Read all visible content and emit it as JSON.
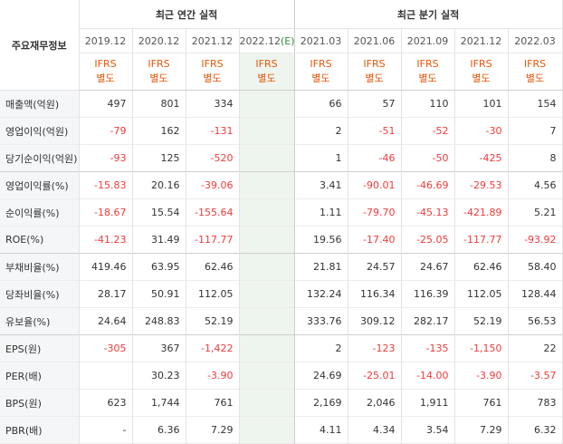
{
  "header": {
    "label_col": "주요재무정보",
    "annual_title": "최근 연간 실적",
    "quarter_title": "최근 분기 실적",
    "annual_periods": [
      "2019.12",
      "2020.12",
      "2021.12",
      "2022.12"
    ],
    "estimate_mark": "(E)",
    "quarter_periods": [
      "2021.03",
      "2021.06",
      "2021.09",
      "2021.12",
      "2022.03"
    ],
    "ifrs": "IFRS",
    "ifrs_sub": "별도"
  },
  "colors": {
    "negative": "#f03b3b",
    "ifrs": "#e6560a",
    "estimate_bg": "#eef5ee"
  },
  "rows": [
    {
      "label": "매출액(억원)",
      "annual": [
        "497",
        "801",
        "334",
        ""
      ],
      "quarter": [
        "66",
        "57",
        "110",
        "101",
        "154"
      ]
    },
    {
      "label": "영업이익(억원)",
      "annual": [
        "-79",
        "162",
        "-131",
        ""
      ],
      "quarter": [
        "2",
        "-51",
        "-52",
        "-30",
        "7"
      ]
    },
    {
      "label": "당기순이익(억원)",
      "annual": [
        "-93",
        "125",
        "-520",
        ""
      ],
      "quarter": [
        "1",
        "-46",
        "-50",
        "-425",
        "8"
      ]
    },
    {
      "label": "영업이익률(%)",
      "annual": [
        "-15.83",
        "20.16",
        "-39.06",
        ""
      ],
      "quarter": [
        "3.41",
        "-90.01",
        "-46.69",
        "-29.53",
        "4.56"
      ]
    },
    {
      "label": "순이익률(%)",
      "annual": [
        "-18.67",
        "15.54",
        "-155.64",
        ""
      ],
      "quarter": [
        "1.11",
        "-79.70",
        "-45.13",
        "-421.89",
        "5.21"
      ]
    },
    {
      "label": "ROE(%)",
      "annual": [
        "-41.23",
        "31.49",
        "-117.77",
        ""
      ],
      "quarter": [
        "19.56",
        "-17.40",
        "-25.05",
        "-117.77",
        "-93.92"
      ]
    },
    {
      "label": "부채비율(%)",
      "annual": [
        "419.46",
        "63.95",
        "62.46",
        ""
      ],
      "quarter": [
        "21.81",
        "24.57",
        "24.67",
        "62.46",
        "58.40"
      ]
    },
    {
      "label": "당좌비율(%)",
      "annual": [
        "28.17",
        "50.91",
        "112.05",
        ""
      ],
      "quarter": [
        "132.24",
        "116.34",
        "116.39",
        "112.05",
        "128.44"
      ]
    },
    {
      "label": "유보율(%)",
      "annual": [
        "24.64",
        "248.83",
        "52.19",
        ""
      ],
      "quarter": [
        "333.76",
        "309.12",
        "282.17",
        "52.19",
        "56.53"
      ]
    },
    {
      "label": "EPS(원)",
      "annual": [
        "-305",
        "367",
        "-1,422",
        ""
      ],
      "quarter": [
        "2",
        "-123",
        "-135",
        "-1,150",
        "22"
      ]
    },
    {
      "label": "PER(배)",
      "annual": [
        "",
        "30.23",
        "-3.90",
        ""
      ],
      "quarter": [
        "24.69",
        "-25.01",
        "-14.00",
        "-3.90",
        "-3.57"
      ]
    },
    {
      "label": "BPS(원)",
      "annual": [
        "623",
        "1,744",
        "761",
        ""
      ],
      "quarter": [
        "2,169",
        "2,046",
        "1,911",
        "761",
        "783"
      ]
    },
    {
      "label": "PBR(배)",
      "annual": [
        "-",
        "6.36",
        "7.29",
        ""
      ],
      "quarter": [
        "4.11",
        "4.34",
        "3.54",
        "7.29",
        "6.32"
      ]
    }
  ]
}
